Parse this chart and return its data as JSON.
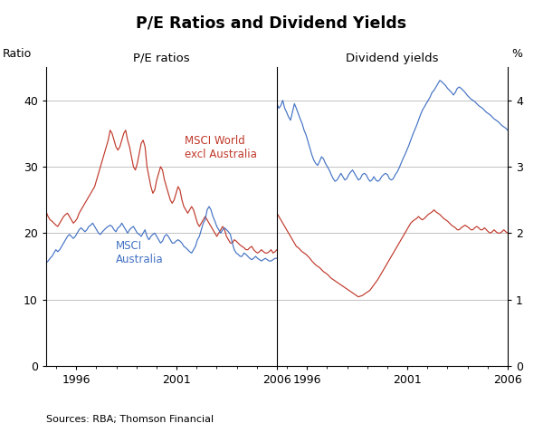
{
  "title": "P/E Ratios and Dividend Yields",
  "left_panel_title": "P/E ratios",
  "right_panel_title": "Dividend yields",
  "left_ylabel": "Ratio",
  "right_ylabel": "%",
  "source_text": "Sources: RBA; Thomson Financial",
  "left_ylim": [
    0,
    45
  ],
  "right_ylim": [
    0,
    4.5
  ],
  "left_yticks": [
    0,
    10,
    20,
    30,
    40
  ],
  "right_yticks": [
    0,
    1,
    2,
    3,
    4
  ],
  "x_start_year": 1994.5,
  "x_end_year": 2006.0,
  "left_x_ticks": [
    1996,
    2001,
    2006
  ],
  "right_x_ticks": [
    1996,
    2001,
    2006
  ],
  "colors": {
    "red": "#C0392B",
    "blue": "#4472C4",
    "grid": "#aaaaaa",
    "background": "#ffffff"
  },
  "label_msci_world": "MSCI World\nexcl Australia",
  "label_msci_aus_pe": "MSCI\nAustralia",
  "pe_msci_world": [
    23.2,
    22.5,
    22.0,
    21.8,
    21.5,
    21.2,
    21.0,
    21.5,
    22.0,
    22.5,
    22.8,
    23.0,
    22.5,
    22.0,
    21.5,
    21.8,
    22.2,
    23.0,
    23.5,
    24.0,
    24.5,
    25.0,
    25.5,
    26.0,
    26.5,
    27.0,
    28.0,
    29.0,
    30.0,
    31.0,
    32.0,
    33.0,
    34.0,
    35.5,
    35.0,
    34.0,
    33.0,
    32.5,
    33.0,
    34.0,
    35.0,
    35.5,
    34.0,
    33.0,
    31.5,
    30.0,
    29.5,
    30.5,
    32.0,
    33.5,
    34.0,
    33.0,
    30.0,
    28.5,
    27.0,
    26.0,
    26.5,
    28.0,
    29.0,
    30.0,
    29.5,
    28.0,
    27.0,
    26.0,
    25.0,
    24.5,
    25.0,
    26.0,
    27.0,
    26.5,
    25.0,
    24.0,
    23.5,
    23.0,
    23.5,
    24.0,
    23.5,
    22.5,
    21.5,
    21.0,
    21.5,
    22.0,
    22.5,
    22.0,
    21.5,
    21.0,
    20.5,
    20.0,
    19.5,
    20.0,
    20.5,
    21.0,
    20.5,
    19.5,
    19.0,
    18.5,
    18.5,
    19.0,
    18.8,
    18.5,
    18.2,
    18.0,
    17.8,
    17.5,
    17.5,
    17.8,
    18.0,
    17.5,
    17.2,
    17.0,
    17.2,
    17.5,
    17.2,
    17.0,
    17.0,
    17.2,
    17.5,
    17.0,
    17.2,
    17.5
  ],
  "pe_msci_aus": [
    15.5,
    15.8,
    16.2,
    16.5,
    17.0,
    17.5,
    17.2,
    17.5,
    18.0,
    18.5,
    19.0,
    19.5,
    19.8,
    19.5,
    19.2,
    19.5,
    20.0,
    20.5,
    20.8,
    20.5,
    20.2,
    20.5,
    21.0,
    21.2,
    21.5,
    21.0,
    20.5,
    20.0,
    19.8,
    20.2,
    20.5,
    20.8,
    21.0,
    21.2,
    21.0,
    20.5,
    20.2,
    20.8,
    21.0,
    21.5,
    21.0,
    20.5,
    20.0,
    20.5,
    20.8,
    21.0,
    20.5,
    20.0,
    19.8,
    19.5,
    20.0,
    20.5,
    19.5,
    19.0,
    19.5,
    19.8,
    20.0,
    19.5,
    19.0,
    18.5,
    18.8,
    19.5,
    19.8,
    19.5,
    19.0,
    18.5,
    18.5,
    18.8,
    19.0,
    18.8,
    18.5,
    18.0,
    17.8,
    17.5,
    17.2,
    17.0,
    17.5,
    18.0,
    19.0,
    19.5,
    20.5,
    21.5,
    22.0,
    23.5,
    24.0,
    23.5,
    22.5,
    21.8,
    21.0,
    20.5,
    20.0,
    20.5,
    20.8,
    20.5,
    20.2,
    19.8,
    18.5,
    17.5,
    17.0,
    16.8,
    16.5,
    16.5,
    17.0,
    16.8,
    16.5,
    16.2,
    16.0,
    16.2,
    16.5,
    16.2,
    16.0,
    15.8,
    16.0,
    16.2,
    16.0,
    15.8,
    15.8,
    16.0,
    16.2,
    16.2
  ],
  "div_msci_world": [
    3.95,
    3.88,
    3.92,
    4.0,
    3.88,
    3.82,
    3.75,
    3.7,
    3.82,
    3.95,
    3.88,
    3.8,
    3.72,
    3.65,
    3.55,
    3.48,
    3.38,
    3.28,
    3.18,
    3.1,
    3.05,
    3.02,
    3.08,
    3.15,
    3.12,
    3.05,
    3.0,
    2.95,
    2.88,
    2.82,
    2.78,
    2.8,
    2.85,
    2.9,
    2.85,
    2.8,
    2.82,
    2.88,
    2.92,
    2.95,
    2.9,
    2.85,
    2.8,
    2.82,
    2.88,
    2.9,
    2.88,
    2.82,
    2.78,
    2.8,
    2.85,
    2.8,
    2.78,
    2.8,
    2.85,
    2.88,
    2.9,
    2.88,
    2.82,
    2.8,
    2.82,
    2.88,
    2.92,
    2.98,
    3.05,
    3.12,
    3.18,
    3.25,
    3.32,
    3.4,
    3.48,
    3.55,
    3.62,
    3.7,
    3.78,
    3.85,
    3.9,
    3.95,
    4.0,
    4.05,
    4.12,
    4.15,
    4.2,
    4.25,
    4.3,
    4.28,
    4.25,
    4.22,
    4.18,
    4.15,
    4.12,
    4.08,
    4.12,
    4.18,
    4.2,
    4.18,
    4.15,
    4.12,
    4.08,
    4.05,
    4.02,
    4.0,
    3.98,
    3.95,
    3.92,
    3.9,
    3.88,
    3.85,
    3.82,
    3.8,
    3.78,
    3.75,
    3.72,
    3.7,
    3.68,
    3.65,
    3.62,
    3.6,
    3.58,
    3.55
  ],
  "div_msci_aus": [
    2.3,
    2.25,
    2.2,
    2.15,
    2.1,
    2.05,
    2.0,
    1.95,
    1.9,
    1.85,
    1.8,
    1.78,
    1.75,
    1.72,
    1.7,
    1.68,
    1.65,
    1.62,
    1.58,
    1.55,
    1.52,
    1.5,
    1.48,
    1.45,
    1.42,
    1.4,
    1.38,
    1.35,
    1.32,
    1.3,
    1.28,
    1.26,
    1.24,
    1.22,
    1.2,
    1.18,
    1.16,
    1.14,
    1.12,
    1.1,
    1.08,
    1.06,
    1.04,
    1.05,
    1.06,
    1.08,
    1.1,
    1.12,
    1.14,
    1.18,
    1.22,
    1.26,
    1.3,
    1.35,
    1.4,
    1.45,
    1.5,
    1.55,
    1.6,
    1.65,
    1.7,
    1.75,
    1.8,
    1.85,
    1.9,
    1.95,
    2.0,
    2.05,
    2.1,
    2.15,
    2.18,
    2.2,
    2.22,
    2.25,
    2.22,
    2.2,
    2.22,
    2.25,
    2.28,
    2.3,
    2.32,
    2.35,
    2.32,
    2.3,
    2.28,
    2.25,
    2.22,
    2.2,
    2.18,
    2.15,
    2.12,
    2.1,
    2.08,
    2.05,
    2.05,
    2.08,
    2.1,
    2.12,
    2.1,
    2.08,
    2.05,
    2.05,
    2.08,
    2.1,
    2.08,
    2.05,
    2.05,
    2.08,
    2.05,
    2.02,
    2.0,
    2.02,
    2.05,
    2.02,
    2.0,
    2.0,
    2.02,
    2.05,
    2.02,
    2.0
  ]
}
